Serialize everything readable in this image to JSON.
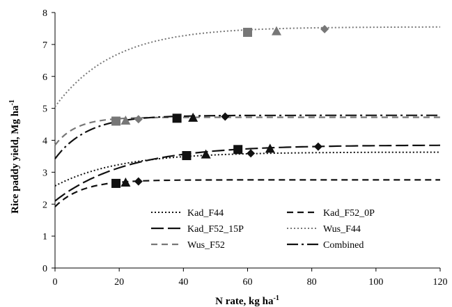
{
  "chart_data": {
    "type": "line",
    "xlabel": "N rate, kg ha",
    "xlabel_sup": "-1",
    "ylabel": "Rice paddy yield, Mg ha",
    "ylabel_sup": "-1",
    "xlim": [
      0,
      120
    ],
    "ylim": [
      0,
      8
    ],
    "x_ticks": [
      0,
      20,
      40,
      60,
      80,
      100,
      120
    ],
    "y_ticks": [
      0,
      1,
      2,
      3,
      4,
      5,
      6,
      7,
      8
    ],
    "x_tick_labels": [
      "0",
      "20",
      "40",
      "60",
      "80",
      "100",
      "120"
    ],
    "y_tick_labels": [
      "0",
      "1",
      "2",
      "3",
      "4",
      "5",
      "6",
      "7",
      "8"
    ],
    "grid": false,
    "legend_position": "bottom-center",
    "series": [
      {
        "name": "Kad_F44",
        "line_style": "dotted",
        "color": "#111111",
        "curve": {
          "y0": 2.57,
          "ymax": 3.63,
          "k": 0.05
        },
        "markers": []
      },
      {
        "name": "Kad_F52_0P",
        "line_style": "dashed",
        "color": "#111111",
        "curve": {
          "y0": 1.92,
          "ymax": 2.76,
          "k": 0.12
        },
        "markers": [
          {
            "x": 19,
            "y": 2.65,
            "shape": "square"
          },
          {
            "x": 22,
            "y": 2.68,
            "shape": "triangle"
          },
          {
            "x": 26,
            "y": 2.71,
            "shape": "diamond"
          }
        ]
      },
      {
        "name": "Kad_F52_15P",
        "line_style": "long-dash",
        "color": "#111111",
        "curve": {
          "y0": 2.1,
          "ymax": 3.85,
          "k": 0.045
        },
        "markers": [
          {
            "x": 41,
            "y": 3.52,
            "shape": "square"
          },
          {
            "x": 47,
            "y": 3.56,
            "shape": "triangle"
          },
          {
            "x": 57,
            "y": 3.71,
            "shape": "square"
          },
          {
            "x": 61,
            "y": 3.59,
            "shape": "diamond"
          },
          {
            "x": 67,
            "y": 3.74,
            "shape": "triangle"
          },
          {
            "x": 82,
            "y": 3.8,
            "shape": "diamond"
          }
        ]
      },
      {
        "name": "Wus_F44",
        "line_style": "dotted",
        "color": "#777777",
        "curve": {
          "y0": 5.05,
          "ymax": 7.55,
          "k": 0.055
        },
        "markers": [
          {
            "x": 60,
            "y": 7.38,
            "shape": "square"
          },
          {
            "x": 69,
            "y": 7.42,
            "shape": "triangle"
          },
          {
            "x": 84,
            "y": 7.48,
            "shape": "diamond"
          }
        ]
      },
      {
        "name": "Wus_F52",
        "line_style": "dashed",
        "color": "#777777",
        "curve": {
          "y0": 3.85,
          "ymax": 4.72,
          "k": 0.15
        },
        "markers": [
          {
            "x": 19,
            "y": 4.6,
            "shape": "square"
          },
          {
            "x": 22,
            "y": 4.62,
            "shape": "triangle"
          },
          {
            "x": 26,
            "y": 4.66,
            "shape": "diamond"
          }
        ]
      },
      {
        "name": "Combined",
        "line_style": "dash-dot",
        "color": "#111111",
        "curve": {
          "y0": 3.42,
          "ymax": 4.78,
          "k": 0.1
        },
        "markers": [
          {
            "x": 38,
            "y": 4.69,
            "shape": "square"
          },
          {
            "x": 43,
            "y": 4.71,
            "shape": "triangle"
          },
          {
            "x": 53,
            "y": 4.74,
            "shape": "diamond"
          }
        ]
      }
    ]
  }
}
